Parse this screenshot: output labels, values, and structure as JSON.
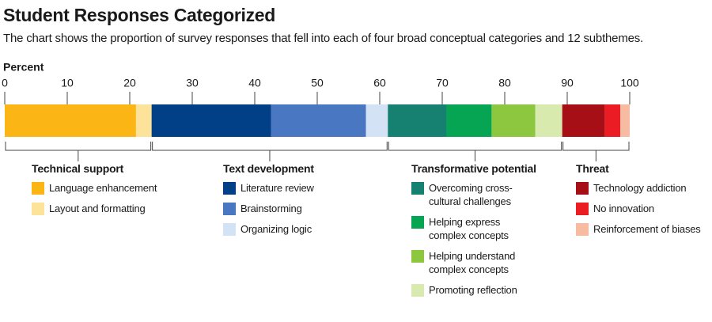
{
  "chart_data": {
    "type": "stacked-bar",
    "title": "Student Responses Categorized",
    "subtitle": "The chart shows the proportion of survey responses that fell into each of four broad conceptual categories and 12 subthemes.",
    "x_label": "Percent",
    "xlim": [
      0,
      100
    ],
    "xticks": [
      0,
      10,
      20,
      30,
      40,
      50,
      60,
      70,
      80,
      90,
      100
    ],
    "groups": [
      {
        "name": "Technical support",
        "series": [
          {
            "name": "Language enhancement",
            "color": "#fbb515",
            "values": [
              21
            ]
          },
          {
            "name": "Layout and formatting",
            "color": "#fde29a",
            "values": [
              2.5
            ]
          }
        ]
      },
      {
        "name": "Text development",
        "series": [
          {
            "name": "Literature review",
            "color": "#013f86",
            "values": [
              19.1
            ]
          },
          {
            "name": "Brainstorming",
            "color": "#4a77c1",
            "values": [
              15.2
            ]
          },
          {
            "name": "Organizing logic",
            "color": "#d3e3f5",
            "values": [
              3.5
            ]
          }
        ]
      },
      {
        "name": "Transformative potential",
        "series": [
          {
            "name": "Overcoming cross-cultural challenges",
            "color": "#168170",
            "values": [
              9.4
            ]
          },
          {
            "name": "Helping express complex concepts",
            "color": "#06a554",
            "values": [
              7.2
            ]
          },
          {
            "name": "Helping understand complex concepts",
            "color": "#8dc63f",
            "values": [
              7
            ]
          },
          {
            "name": "Promoting reflection",
            "color": "#d9eaaf",
            "values": [
              4.3
            ]
          }
        ]
      },
      {
        "name": "Threat",
        "series": [
          {
            "name": "Technology addiction",
            "color": "#a50f15",
            "values": [
              6.8
            ]
          },
          {
            "name": "No innovation",
            "color": "#ec1c24",
            "values": [
              2.5
            ]
          },
          {
            "name": "Reinforcement of biases",
            "color": "#f7bba1",
            "values": [
              1.5
            ]
          }
        ]
      }
    ]
  }
}
